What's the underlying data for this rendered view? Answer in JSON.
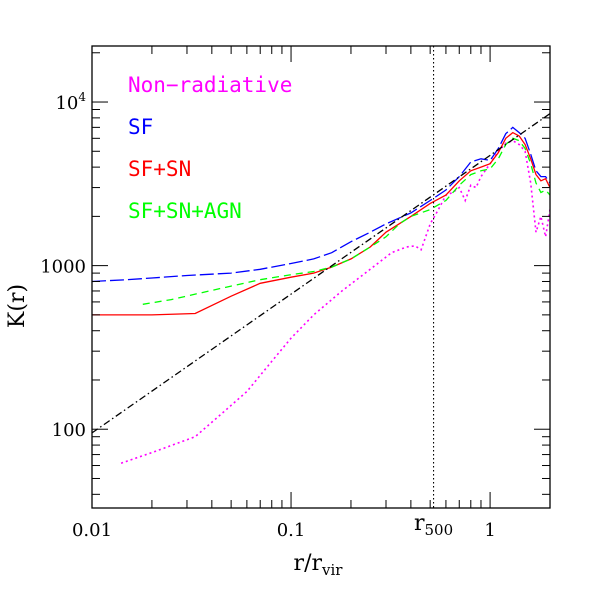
{
  "chart_data": {
    "type": "line",
    "xlabel": "r/r",
    "xlabel_sub": "vir",
    "ylabel": "K(r)",
    "x_scale": "log",
    "y_scale": "log",
    "xlim": [
      0.01,
      2.0
    ],
    "ylim": [
      33,
      22000
    ],
    "x_ticks": [
      {
        "value": 0.01,
        "label": "0.01"
      },
      {
        "value": 0.1,
        "label": "0.1"
      },
      {
        "value": 1,
        "label": "1"
      }
    ],
    "y_ticks": [
      {
        "value": 100,
        "label": "100",
        "sup": ""
      },
      {
        "value": 1000,
        "label": "1000",
        "sup": ""
      },
      {
        "value": 10000,
        "label": "10",
        "sup": "4"
      }
    ],
    "vline": {
      "x": 0.52,
      "label": "r",
      "label_sub": "500",
      "style": "dotted",
      "color": "#000000"
    },
    "legend_position": "top-left",
    "series": [
      {
        "name": "Non−radiative",
        "color": "#ff00ff",
        "style": "dotted",
        "x": [
          0.014,
          0.02,
          0.033,
          0.045,
          0.06,
          0.08,
          0.1,
          0.13,
          0.18,
          0.25,
          0.32,
          0.38,
          0.42,
          0.45,
          0.5,
          0.55,
          0.6,
          0.65,
          0.7,
          0.75,
          0.8,
          0.85,
          0.9,
          1.0,
          1.1,
          1.2,
          1.3,
          1.4,
          1.5,
          1.6,
          1.7,
          1.8,
          1.9,
          2.0
        ],
        "y": [
          62,
          72,
          90,
          125,
          170,
          260,
          360,
          500,
          700,
          950,
          1200,
          1300,
          1320,
          1250,
          1800,
          2200,
          2700,
          2800,
          3000,
          2500,
          3100,
          3000,
          3500,
          4200,
          5000,
          5600,
          5800,
          5500,
          5000,
          3200,
          1600,
          2000,
          1500,
          2200
        ]
      },
      {
        "name": "SF",
        "color": "#0000ff",
        "style": "long-dash",
        "x": [
          0.01,
          0.015,
          0.02,
          0.03,
          0.05,
          0.07,
          0.1,
          0.13,
          0.16,
          0.2,
          0.25,
          0.3,
          0.4,
          0.5,
          0.6,
          0.7,
          0.8,
          0.9,
          1.0,
          1.1,
          1.2,
          1.3,
          1.4,
          1.5,
          1.6,
          1.7,
          1.8,
          1.9,
          2.0
        ],
        "y": [
          800,
          820,
          840,
          870,
          900,
          950,
          1030,
          1100,
          1200,
          1400,
          1600,
          1800,
          2100,
          2500,
          2900,
          3500,
          4300,
          4500,
          4400,
          5200,
          6400,
          7000,
          6500,
          6000,
          4800,
          3800,
          3500,
          3500,
          3200
        ]
      },
      {
        "name": "SF+SN",
        "color": "#ff0000",
        "style": "solid",
        "x": [
          0.01,
          0.02,
          0.033,
          0.05,
          0.07,
          0.1,
          0.13,
          0.16,
          0.2,
          0.25,
          0.3,
          0.4,
          0.5,
          0.6,
          0.7,
          0.8,
          0.9,
          1.0,
          1.1,
          1.2,
          1.3,
          1.4,
          1.5,
          1.6,
          1.7,
          1.8,
          1.9,
          2.0
        ],
        "y": [
          500,
          500,
          510,
          650,
          780,
          850,
          900,
          980,
          1100,
          1300,
          1600,
          2000,
          2400,
          2700,
          3300,
          3800,
          4000,
          4200,
          4900,
          6000,
          6500,
          6200,
          5500,
          4500,
          3600,
          3300,
          3400,
          3000
        ]
      },
      {
        "name": "SF+SN+AGN",
        "color": "#00ff00",
        "style": "short-dash",
        "x": [
          0.018,
          0.025,
          0.035,
          0.05,
          0.07,
          0.1,
          0.13,
          0.16,
          0.2,
          0.25,
          0.3,
          0.35,
          0.4,
          0.5,
          0.6,
          0.7,
          0.8,
          0.9,
          1.0,
          1.1,
          1.2,
          1.3,
          1.4,
          1.5,
          1.6,
          1.7,
          1.8,
          1.9,
          2.0
        ],
        "y": [
          580,
          620,
          680,
          750,
          820,
          880,
          920,
          980,
          1100,
          1300,
          1500,
          1800,
          2000,
          2200,
          2500,
          3100,
          3600,
          3800,
          3900,
          4500,
          5500,
          6000,
          5800,
          5200,
          4200,
          3200,
          2800,
          2900,
          2700
        ]
      },
      {
        "name": "",
        "color": "#000000",
        "style": "dash-dot",
        "x": [
          0.01,
          2.0
        ],
        "y": [
          95,
          8500
        ]
      }
    ]
  }
}
